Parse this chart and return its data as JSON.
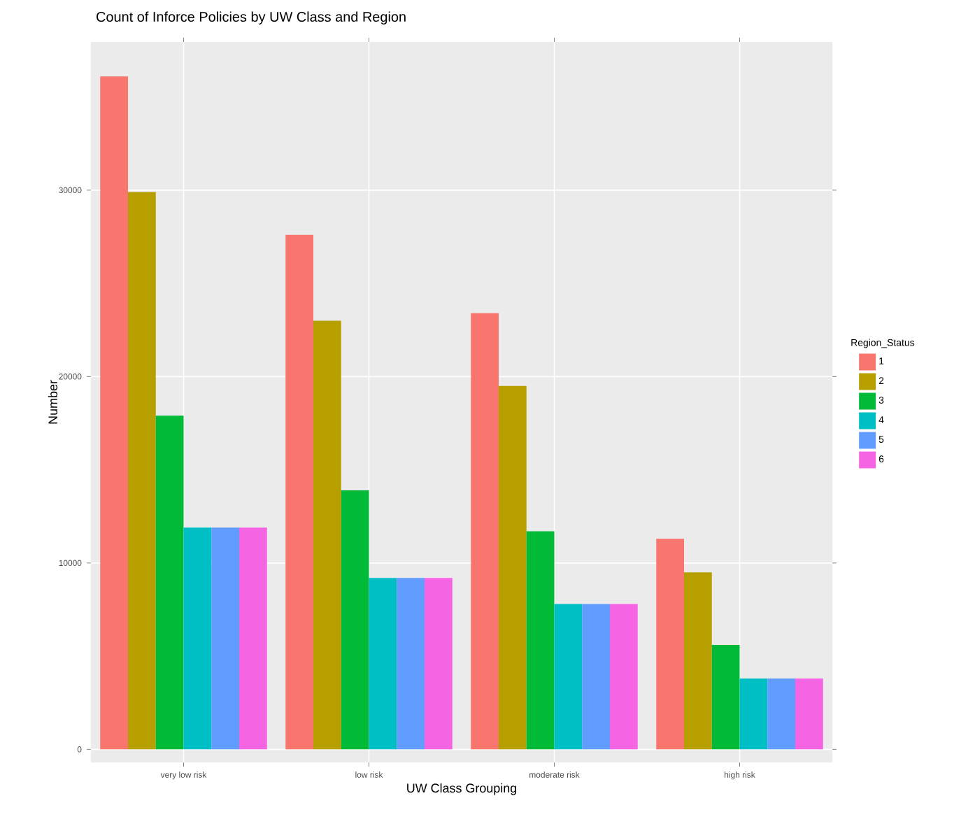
{
  "chart_data": {
    "type": "bar",
    "title": "Count of Inforce Policies by UW Class and Region",
    "xlabel": "UW Class Grouping",
    "ylabel": "Number",
    "legend_title": "Region_Status",
    "categories": [
      "very low risk",
      "low risk",
      "moderate risk",
      "high risk"
    ],
    "series": [
      {
        "name": "1",
        "color": "#f8766d",
        "values": [
          36100,
          27600,
          23400,
          11300
        ]
      },
      {
        "name": "2",
        "color": "#b79f00",
        "values": [
          29900,
          23000,
          19500,
          9500
        ]
      },
      {
        "name": "3",
        "color": "#00ba38",
        "values": [
          17900,
          13900,
          11700,
          5600
        ]
      },
      {
        "name": "4",
        "color": "#00bfc4",
        "values": [
          11900,
          9200,
          7800,
          3800
        ]
      },
      {
        "name": "5",
        "color": "#619cff",
        "values": [
          11900,
          9200,
          7800,
          3800
        ]
      },
      {
        "name": "6",
        "color": "#f564e3",
        "values": [
          11900,
          9200,
          7800,
          3800
        ]
      }
    ],
    "ylim": [
      -700,
      37950
    ],
    "yticks": [
      0,
      10000,
      20000,
      30000
    ],
    "grid": true,
    "legend": "right"
  }
}
